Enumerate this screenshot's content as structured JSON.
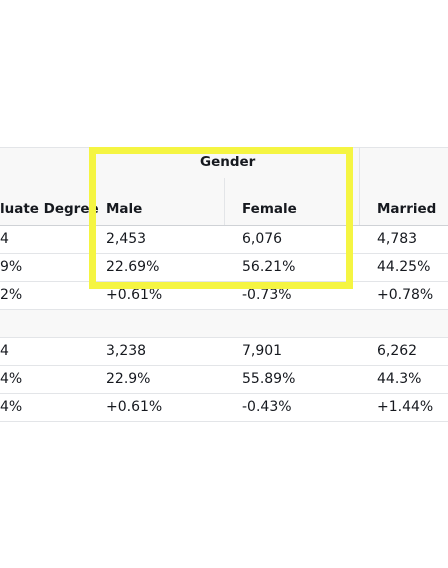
{
  "table": {
    "group_header": "Gender",
    "columns": [
      {
        "label": "luate Degree"
      },
      {
        "label": "Male"
      },
      {
        "label": "Female"
      },
      {
        "label": "Married"
      }
    ],
    "rows": [
      {
        "cells": [
          "4",
          "2,453",
          "6,076",
          "4,783"
        ]
      },
      {
        "cells": [
          "9%",
          "22.69%",
          "56.21%",
          "44.25%"
        ]
      },
      {
        "cells": [
          "2%",
          "+0.61%",
          "-0.73%",
          "+0.78%"
        ]
      },
      {
        "cells": [
          "4",
          "3,238",
          "7,901",
          "6,262"
        ]
      },
      {
        "cells": [
          "4%",
          "22.9%",
          "55.89%",
          "44.3%"
        ]
      },
      {
        "cells": [
          "4%",
          "+0.61%",
          "-0.43%",
          "+1.44%"
        ]
      }
    ]
  },
  "highlight": {
    "color": "#f5f542"
  }
}
